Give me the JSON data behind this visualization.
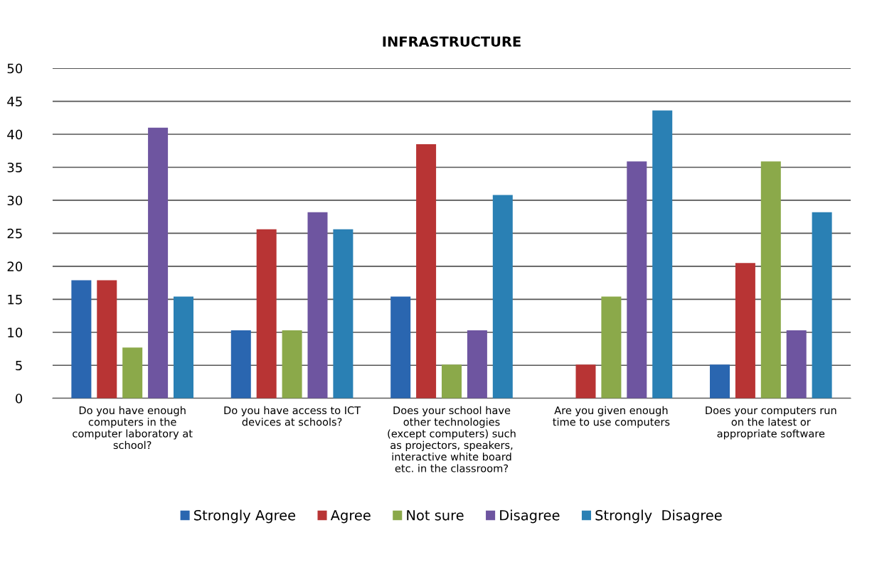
{
  "chart_data": {
    "type": "bar",
    "title": "INFRASTRUCTURE",
    "categories": [
      "Do you have enough\ncomputers in the\ncomputer laboratory at\nschool?",
      "Do you have access to ICT\ndevices at schools?",
      "Does your school have\nother technologies\n(except computers) such\nas projectors, speakers,\ninteractive white board\netc. in the classroom?",
      "Are you given enough\ntime to use computers",
      "Does your computers run\non the latest or\nappropriate software"
    ],
    "series": [
      {
        "name": "Strongly Agree",
        "color": "#2a66b0",
        "values": [
          17.9,
          10.3,
          15.4,
          0,
          5.1
        ]
      },
      {
        "name": "Agree",
        "color": "#b83434",
        "values": [
          17.9,
          25.6,
          38.5,
          5.1,
          20.5
        ]
      },
      {
        "name": "Not sure",
        "color": "#8ba94a",
        "values": [
          7.7,
          10.3,
          5.1,
          15.4,
          35.9
        ]
      },
      {
        "name": "Disagree",
        "color": "#6e55a0",
        "values": [
          41.0,
          28.2,
          10.3,
          35.9,
          10.3
        ]
      },
      {
        "name": "Strongly  Disagree",
        "color": "#2a80b4",
        "values": [
          15.4,
          25.6,
          30.8,
          43.6,
          28.2
        ]
      }
    ],
    "ylim": [
      0,
      50
    ],
    "yticks": [
      0,
      5,
      10,
      15,
      20,
      25,
      30,
      35,
      40,
      45,
      50
    ],
    "grid": "y",
    "legend": "bottom"
  }
}
